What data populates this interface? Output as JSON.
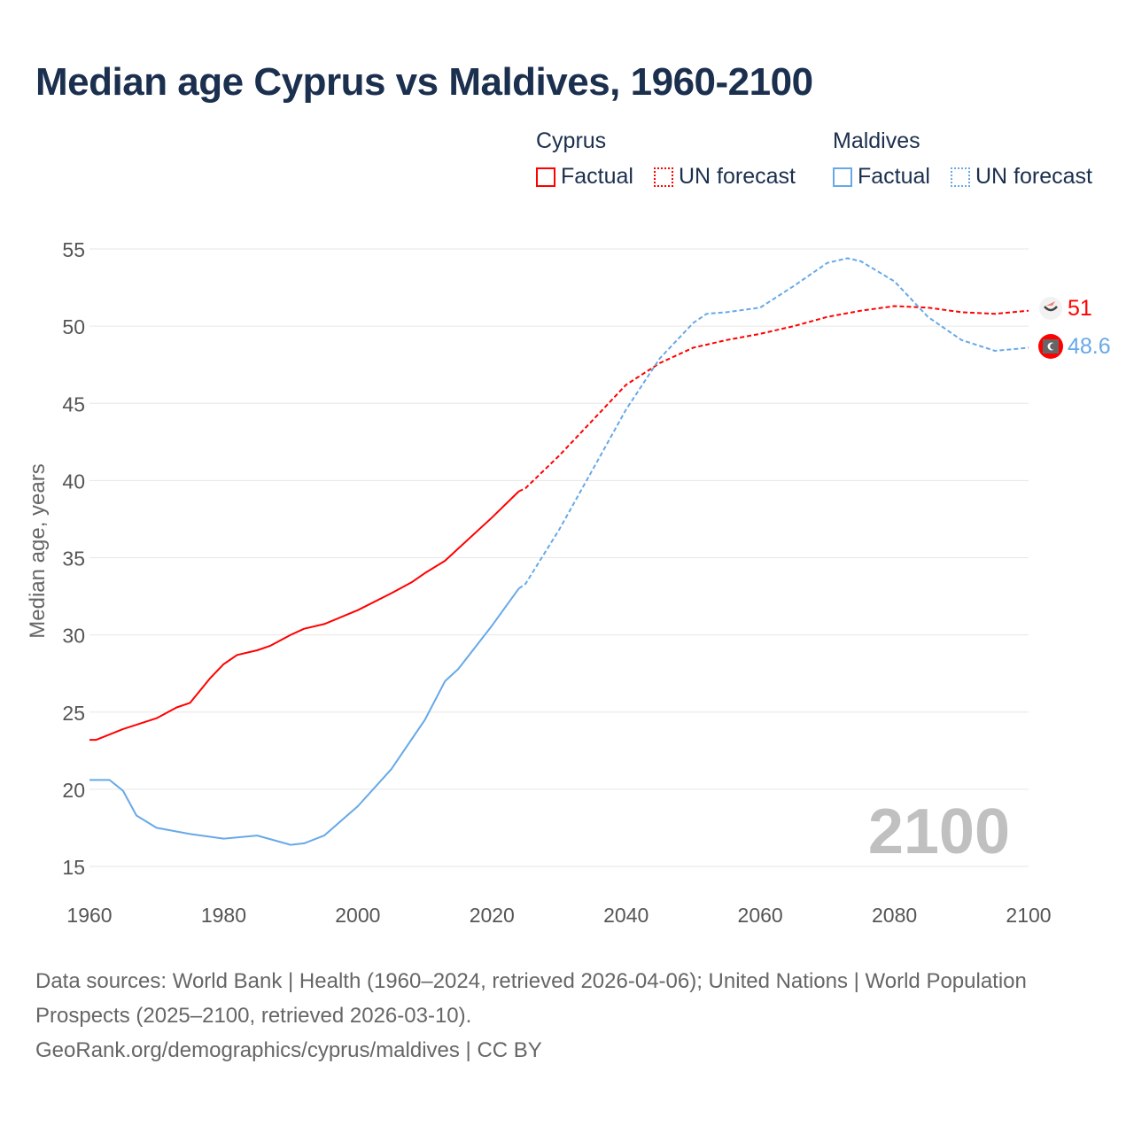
{
  "title": "Median age Cyprus vs Maldives, 1960-2100",
  "legend": {
    "groups": [
      {
        "name": "Cyprus",
        "factual": "Factual",
        "forecast": "UN forecast",
        "color": "#ff0000"
      },
      {
        "name": "Maldives",
        "factual": "Factual",
        "forecast": "UN forecast",
        "color": "#67a9e8"
      }
    ]
  },
  "watermark_year": "2100",
  "end_labels": {
    "cyprus": "51",
    "maldives": "48.6"
  },
  "footer": {
    "line1": "Data sources: World Bank | Health (1960–2024, retrieved 2026-04-06); United Nations | World Population Prospects (2025–2100, retrieved 2026-03-10).",
    "line2": "GeoRank.org/demographics/cyprus/maldives | CC BY"
  },
  "chart_data": {
    "type": "line",
    "title": "Median age Cyprus vs Maldives, 1960-2100",
    "xlabel": "",
    "ylabel": "Median age, years",
    "xlim": [
      1960,
      2100
    ],
    "ylim": [
      15,
      55
    ],
    "xticks": [
      1960,
      1980,
      2000,
      2020,
      2040,
      2060,
      2080,
      2100
    ],
    "yticks": [
      15,
      20,
      25,
      30,
      35,
      40,
      45,
      50,
      55
    ],
    "grid": true,
    "legend_position": "top-right",
    "series": [
      {
        "name": "Cyprus Factual",
        "color": "#ff0000",
        "dashed": false,
        "x": [
          1960,
          1961,
          1965,
          1970,
          1973,
          1975,
          1978,
          1980,
          1982,
          1985,
          1987,
          1990,
          1992,
          1995,
          2000,
          2005,
          2008,
          2010,
          2013,
          2015,
          2020,
          2024
        ],
        "y": [
          23.2,
          23.2,
          23.9,
          24.6,
          25.3,
          25.6,
          27.2,
          28.1,
          28.7,
          29.0,
          29.3,
          30.0,
          30.4,
          30.7,
          31.6,
          32.7,
          33.4,
          34.0,
          34.8,
          35.6,
          37.6,
          39.3
        ]
      },
      {
        "name": "Cyprus UN forecast",
        "color": "#ff0000",
        "dashed": true,
        "x": [
          2024,
          2025,
          2030,
          2035,
          2040,
          2045,
          2050,
          2055,
          2060,
          2065,
          2070,
          2075,
          2080,
          2085,
          2090,
          2095,
          2100
        ],
        "y": [
          39.3,
          39.5,
          41.6,
          43.9,
          46.2,
          47.6,
          48.6,
          49.1,
          49.5,
          50.0,
          50.6,
          51.0,
          51.3,
          51.2,
          50.9,
          50.8,
          51.0
        ]
      },
      {
        "name": "Maldives Factual",
        "color": "#67a9e8",
        "dashed": false,
        "x": [
          1960,
          1963,
          1965,
          1967,
          1970,
          1975,
          1980,
          1985,
          1990,
          1992,
          1995,
          2000,
          2005,
          2010,
          2013,
          2015,
          2020,
          2024
        ],
        "y": [
          20.6,
          20.6,
          19.9,
          18.3,
          17.5,
          17.1,
          16.8,
          17.0,
          16.4,
          16.5,
          17.0,
          18.9,
          21.3,
          24.5,
          27.0,
          27.8,
          30.6,
          33.0
        ]
      },
      {
        "name": "Maldives UN forecast",
        "color": "#67a9e8",
        "dashed": true,
        "x": [
          2024,
          2025,
          2030,
          2035,
          2040,
          2045,
          2050,
          2052,
          2055,
          2060,
          2065,
          2070,
          2073,
          2075,
          2080,
          2085,
          2090,
          2095,
          2100
        ],
        "y": [
          33.0,
          33.3,
          36.8,
          40.7,
          44.6,
          47.9,
          50.2,
          50.8,
          50.9,
          51.2,
          52.6,
          54.1,
          54.4,
          54.2,
          52.9,
          50.6,
          49.1,
          48.4,
          48.6
        ]
      }
    ]
  }
}
